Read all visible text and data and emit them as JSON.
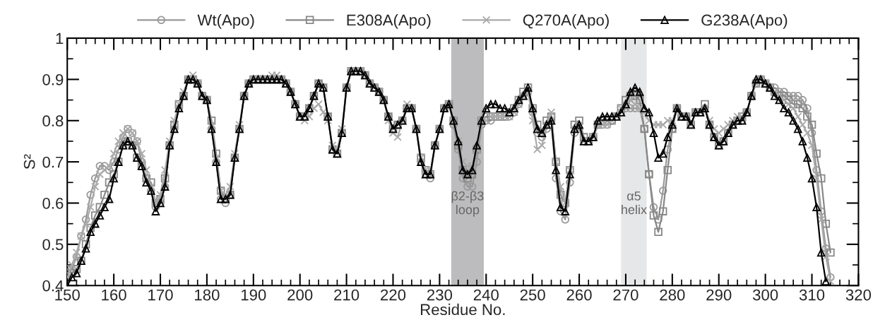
{
  "chart_data": {
    "type": "line",
    "xlabel": "Residue No.",
    "ylabel": "S²",
    "x": [
      150,
      151,
      152,
      153,
      154,
      155,
      156,
      157,
      158,
      159,
      160,
      161,
      162,
      163,
      164,
      165,
      166,
      167,
      168,
      169,
      170,
      171,
      172,
      173,
      174,
      175,
      176,
      177,
      178,
      179,
      180,
      181,
      182,
      183,
      184,
      185,
      186,
      187,
      188,
      189,
      190,
      191,
      192,
      193,
      194,
      195,
      196,
      197,
      198,
      199,
      200,
      201,
      202,
      203,
      204,
      205,
      206,
      207,
      208,
      209,
      210,
      211,
      212,
      213,
      214,
      215,
      216,
      217,
      218,
      219,
      220,
      221,
      222,
      223,
      224,
      225,
      226,
      227,
      228,
      229,
      230,
      231,
      232,
      233,
      234,
      235,
      236,
      237,
      238,
      239,
      240,
      241,
      242,
      243,
      244,
      245,
      246,
      247,
      248,
      249,
      250,
      251,
      252,
      253,
      254,
      255,
      256,
      257,
      258,
      259,
      260,
      261,
      262,
      263,
      264,
      265,
      266,
      267,
      268,
      269,
      270,
      271,
      272,
      273,
      274,
      275,
      276,
      277,
      278,
      279,
      280,
      281,
      282,
      283,
      284,
      285,
      286,
      287,
      288,
      289,
      290,
      291,
      292,
      293,
      294,
      295,
      296,
      297,
      298,
      299,
      300,
      301,
      302,
      303,
      304,
      305,
      306,
      307,
      308,
      309,
      310,
      311,
      312,
      313,
      314
    ],
    "series": [
      {
        "name": "Wt(Apo)",
        "color": "#999999",
        "marker": "circle",
        "values": [
          0.43,
          0.44,
          0.47,
          0.52,
          0.56,
          0.62,
          0.66,
          0.69,
          0.69,
          0.68,
          0.7,
          0.73,
          0.76,
          0.78,
          0.77,
          0.75,
          0.7,
          0.66,
          0.63,
          0.59,
          0.6,
          0.64,
          0.74,
          0.78,
          0.83,
          0.86,
          0.9,
          0.9,
          0.89,
          0.86,
          0.85,
          0.78,
          0.7,
          0.61,
          0.6,
          0.62,
          0.71,
          0.78,
          0.86,
          0.89,
          0.9,
          0.9,
          0.9,
          0.9,
          0.9,
          0.9,
          0.9,
          0.89,
          0.87,
          0.84,
          0.81,
          0.81,
          0.83,
          0.86,
          0.89,
          0.88,
          0.81,
          0.73,
          0.72,
          0.77,
          0.88,
          0.92,
          0.92,
          0.92,
          0.91,
          0.89,
          0.88,
          0.87,
          0.85,
          0.81,
          0.78,
          0.79,
          0.8,
          0.83,
          0.83,
          0.78,
          0.7,
          0.67,
          0.66,
          0.74,
          0.78,
          0.83,
          0.84,
          0.79,
          0.73,
          0.66,
          0.64,
          0.64,
          0.7,
          0.79,
          0.8,
          0.8,
          0.81,
          0.81,
          0.81,
          0.81,
          0.82,
          0.84,
          0.86,
          0.87,
          0.82,
          0.77,
          0.76,
          0.78,
          0.8,
          0.66,
          0.58,
          0.56,
          0.65,
          0.77,
          0.78,
          0.75,
          0.75,
          0.76,
          0.79,
          0.79,
          0.79,
          0.8,
          0.81,
          0.82,
          0.83,
          0.83,
          0.83,
          0.83,
          0.78,
          0.67,
          0.59,
          0.56,
          0.63,
          0.73,
          0.78,
          0.83,
          0.81,
          0.81,
          0.79,
          0.82,
          0.82,
          0.83,
          0.79,
          0.76,
          0.74,
          0.75,
          0.77,
          0.79,
          0.8,
          0.8,
          0.82,
          0.86,
          0.89,
          0.9,
          0.89,
          0.88,
          0.88,
          0.87,
          0.87,
          0.86,
          0.86,
          0.86,
          0.85,
          0.83,
          0.77,
          0.68,
          0.58,
          0.49,
          0.42
        ]
      },
      {
        "name": "E308A(Apo)",
        "color": "#888888",
        "marker": "square",
        "values": [
          0.44,
          0.43,
          0.44,
          0.46,
          0.5,
          0.54,
          0.57,
          0.59,
          0.62,
          0.65,
          0.67,
          0.7,
          0.74,
          0.75,
          0.74,
          0.71,
          0.69,
          0.66,
          0.65,
          0.6,
          0.61,
          0.66,
          0.74,
          0.79,
          0.84,
          0.86,
          0.9,
          0.9,
          0.89,
          0.86,
          0.85,
          0.8,
          0.72,
          0.63,
          0.61,
          0.62,
          0.71,
          0.78,
          0.86,
          0.89,
          0.9,
          0.9,
          0.9,
          0.9,
          0.9,
          0.9,
          0.9,
          0.89,
          0.87,
          0.84,
          0.81,
          0.81,
          0.83,
          0.86,
          0.89,
          0.88,
          0.81,
          0.73,
          0.72,
          0.77,
          0.88,
          0.92,
          0.92,
          0.92,
          0.91,
          0.89,
          0.88,
          0.87,
          0.85,
          0.81,
          0.78,
          0.79,
          0.8,
          0.83,
          0.83,
          0.78,
          0.71,
          0.68,
          0.67,
          0.74,
          0.78,
          0.83,
          0.84,
          0.8,
          0.74,
          0.68,
          0.66,
          0.67,
          0.73,
          0.8,
          0.81,
          0.81,
          0.81,
          0.81,
          0.81,
          0.82,
          0.83,
          0.85,
          0.87,
          0.88,
          0.83,
          0.79,
          0.77,
          0.8,
          0.81,
          0.7,
          0.62,
          0.6,
          0.68,
          0.79,
          0.8,
          0.76,
          0.75,
          0.76,
          0.79,
          0.8,
          0.8,
          0.8,
          0.81,
          0.83,
          0.85,
          0.86,
          0.86,
          0.85,
          0.78,
          0.67,
          0.57,
          0.53,
          0.58,
          0.68,
          0.78,
          0.83,
          0.81,
          0.81,
          0.79,
          0.82,
          0.82,
          0.84,
          0.79,
          0.76,
          0.74,
          0.75,
          0.77,
          0.79,
          0.8,
          0.81,
          0.82,
          0.86,
          0.89,
          0.9,
          0.89,
          0.88,
          0.87,
          0.86,
          0.86,
          0.85,
          0.84,
          0.84,
          0.83,
          0.81,
          0.79,
          0.72,
          0.66,
          0.55,
          0.48
        ]
      },
      {
        "name": "Q270A(Apo)",
        "color": "#aaaaaa",
        "marker": "cross",
        "values": [
          0.42,
          0.45,
          0.48,
          0.52,
          0.55,
          0.59,
          0.64,
          0.67,
          0.68,
          0.69,
          0.72,
          0.75,
          0.77,
          0.78,
          0.77,
          0.75,
          0.72,
          0.68,
          0.64,
          0.6,
          0.62,
          0.68,
          0.75,
          0.8,
          0.84,
          0.87,
          0.9,
          0.91,
          0.89,
          0.86,
          0.85,
          0.79,
          0.71,
          0.63,
          0.62,
          0.64,
          0.72,
          0.79,
          0.86,
          0.89,
          0.9,
          0.9,
          0.9,
          0.9,
          0.91,
          0.91,
          0.9,
          0.89,
          0.87,
          0.84,
          0.81,
          0.8,
          0.81,
          0.83,
          0.84,
          0.82,
          0.8,
          0.74,
          0.73,
          0.78,
          0.88,
          0.92,
          0.92,
          0.92,
          0.91,
          0.89,
          0.88,
          0.87,
          0.85,
          0.8,
          0.77,
          0.76,
          0.8,
          0.84,
          0.83,
          0.78,
          0.71,
          0.68,
          0.67,
          0.74,
          0.78,
          0.83,
          0.84,
          0.8,
          0.75,
          0.7,
          0.69,
          0.69,
          0.73,
          0.8,
          0.8,
          0.81,
          0.81,
          0.81,
          0.81,
          0.81,
          0.82,
          0.84,
          0.86,
          0.87,
          0.8,
          0.73,
          0.74,
          0.79,
          0.82,
          0.7,
          0.64,
          0.6,
          0.68,
          0.78,
          0.79,
          0.75,
          0.75,
          0.76,
          0.79,
          0.79,
          0.79,
          0.8,
          0.81,
          0.83,
          0.84,
          0.85,
          0.84,
          0.83,
          0.82,
          0.8,
          0.79,
          0.79,
          0.79,
          0.8,
          0.8,
          0.83,
          0.81,
          0.81,
          0.79,
          0.82,
          0.82,
          0.83,
          0.8,
          0.78,
          0.77,
          0.78,
          0.79,
          0.8,
          0.81,
          0.81,
          0.82,
          0.86,
          0.89,
          0.9,
          0.89,
          0.88,
          0.87,
          0.86,
          0.85,
          0.84,
          0.83,
          0.81,
          0.79,
          0.77,
          0.74,
          0.66,
          0.56,
          0.47,
          0.41
        ]
      },
      {
        "name": "G238A(Apo)",
        "color": "#000000",
        "marker": "triangle",
        "values": [
          0.4,
          0.42,
          0.43,
          0.46,
          0.49,
          0.53,
          0.55,
          0.57,
          0.59,
          0.61,
          0.66,
          0.7,
          0.74,
          0.75,
          0.74,
          0.71,
          0.69,
          0.65,
          0.63,
          0.58,
          0.6,
          0.64,
          0.74,
          0.78,
          0.83,
          0.86,
          0.9,
          0.9,
          0.89,
          0.86,
          0.85,
          0.78,
          0.7,
          0.61,
          0.61,
          0.62,
          0.71,
          0.78,
          0.86,
          0.89,
          0.9,
          0.9,
          0.9,
          0.9,
          0.9,
          0.9,
          0.9,
          0.89,
          0.87,
          0.84,
          0.81,
          0.81,
          0.83,
          0.86,
          0.89,
          0.88,
          0.81,
          0.73,
          0.72,
          0.77,
          0.88,
          0.92,
          0.92,
          0.92,
          0.91,
          0.89,
          0.88,
          0.87,
          0.85,
          0.81,
          0.78,
          0.79,
          0.8,
          0.83,
          0.83,
          0.78,
          0.7,
          0.67,
          0.67,
          0.74,
          0.78,
          0.83,
          0.84,
          0.8,
          0.75,
          0.68,
          0.67,
          0.68,
          0.74,
          0.8,
          0.83,
          0.84,
          0.84,
          0.83,
          0.83,
          0.82,
          0.83,
          0.85,
          0.86,
          0.88,
          0.83,
          0.78,
          0.77,
          0.79,
          0.8,
          0.68,
          0.59,
          0.58,
          0.67,
          0.78,
          0.79,
          0.75,
          0.75,
          0.76,
          0.8,
          0.81,
          0.81,
          0.81,
          0.81,
          0.82,
          0.84,
          0.87,
          0.88,
          0.87,
          0.83,
          0.82,
          0.77,
          0.71,
          0.72,
          0.76,
          0.79,
          0.83,
          0.81,
          0.81,
          0.79,
          0.82,
          0.82,
          0.83,
          0.79,
          0.76,
          0.74,
          0.75,
          0.77,
          0.79,
          0.8,
          0.8,
          0.82,
          0.86,
          0.9,
          0.9,
          0.89,
          0.88,
          0.86,
          0.85,
          0.83,
          0.82,
          0.8,
          0.78,
          0.75,
          0.71,
          0.66,
          0.59,
          0.48,
          0.41,
          null
        ]
      }
    ],
    "xlim": [
      150,
      320
    ],
    "xticks": [
      150,
      160,
      170,
      180,
      190,
      200,
      210,
      220,
      230,
      240,
      250,
      260,
      270,
      280,
      290,
      300,
      310,
      320
    ],
    "ylim": [
      0.4,
      1
    ],
    "yticks": [
      0.4,
      0.5,
      0.6,
      0.7,
      0.8,
      0.9,
      {
        "value": 1,
        "label": "1"
      }
    ],
    "bands": [
      {
        "axis": "x",
        "from": 232.5,
        "to": 239.5,
        "label": "β2-β3\nloop",
        "color": "#bcbcbe"
      },
      {
        "axis": "x",
        "from": 269,
        "to": 274.5,
        "label": "α5\nhelix",
        "color": "#e6e7e8"
      }
    ],
    "grid": false,
    "legend": "top",
    "line_style": "solid"
  }
}
